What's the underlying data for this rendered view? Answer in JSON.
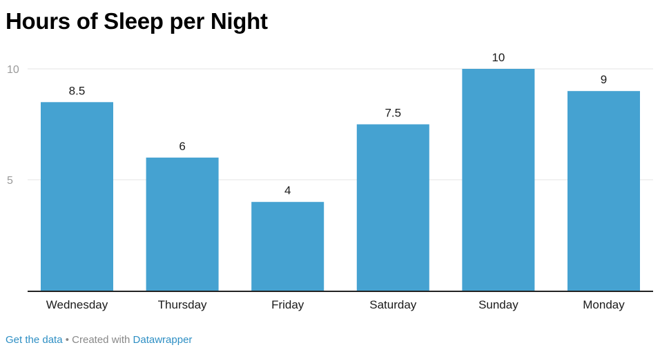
{
  "title": "Hours of Sleep per Night",
  "colors": {
    "bar": "#45a2d1",
    "grid": "#e3e3e3",
    "axis": "#222222",
    "label": "#1a1a1a",
    "tick": "#9a9a9a"
  },
  "chart_data": {
    "type": "bar",
    "title": "Hours of Sleep per Night",
    "categories": [
      "Wednesday",
      "Thursday",
      "Friday",
      "Saturday",
      "Sunday",
      "Monday"
    ],
    "values": [
      8.5,
      6,
      4,
      7.5,
      10,
      9
    ],
    "value_labels": [
      "8.5",
      "6",
      "4",
      "7.5",
      "10",
      "9"
    ],
    "y_ticks": [
      5,
      10
    ],
    "y_tick_labels": [
      "5",
      "10"
    ],
    "ylim": [
      0,
      10
    ],
    "grid": true,
    "legend": "none",
    "xlabel": "",
    "ylabel": ""
  },
  "footer": {
    "get_data": "Get the data",
    "separator": " • ",
    "created_with": "Created with ",
    "tool": "Datawrapper"
  }
}
